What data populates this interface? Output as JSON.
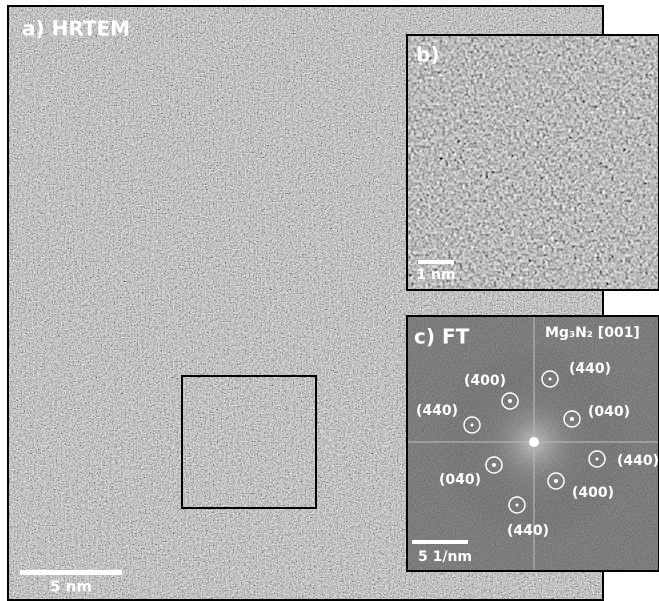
{
  "panels": [
    {
      "label": "a) HRTEM",
      "scale_bar": "5 nm"
    },
    {
      "label": "b)",
      "scale_bar": "1 nm"
    },
    {
      "label": "c) FT",
      "scale_bar": "5 1/nm",
      "zone_axis": "Mg₃N₂ [001]",
      "reflections": [
        "(4̄00)",
        "(4̄4̄0)",
        "(4̄40)",
        "(040)",
        "(440)",
        "(04̄0)",
        "(400)",
        "(44̄0)"
      ]
    }
  ]
}
